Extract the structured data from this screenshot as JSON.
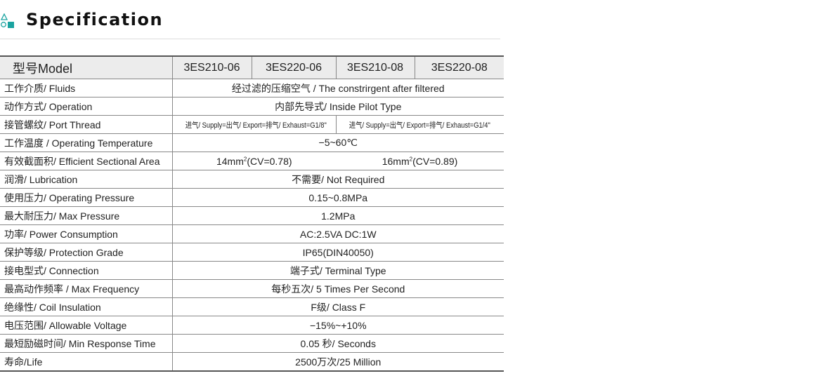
{
  "header": {
    "title": "Specification",
    "icon": "shapes-icon",
    "accent": "#1aa3a0"
  },
  "table": {
    "model_label": "型号Model",
    "models": [
      "3ES210-06",
      "3ES220-06",
      "3ES210-08",
      "3ES220-08"
    ],
    "rows": [
      {
        "label": "工作介质/ Fluids",
        "value": "经过滤的压缩空气 / The constrirgent after filtered"
      },
      {
        "label": "动作方式/ Operation",
        "value": "内部先导式/ Inside Pilot Type"
      },
      {
        "label": "接管螺纹/ Port Thread",
        "values": [
          "进气/ Supply=出气/ Export=排气/ Exhaust=G1/8\"",
          "进气/ Supply=出气/ Export=排气/ Exhaust=G1/4\""
        ]
      },
      {
        "label": "工作温度 / Operating Temperature",
        "value": "−5~60℃"
      },
      {
        "label": "有效截面积/ Efficient Sectional Area",
        "values": [
          "14mm",
          "(CV=0.78)",
          "16mm",
          "(CV=0.89)"
        ],
        "sup": "2"
      },
      {
        "label": "润滑/ Lubrication",
        "value": "不需要/ Not Required"
      },
      {
        "label": "使用压力/ Operating Pressure",
        "value": "0.15~0.8MPa"
      },
      {
        "label": "最大耐压力/ Max Pressure",
        "value": "1.2MPa"
      },
      {
        "label": "功率/ Power Consumption",
        "value": "AC:2.5VA   DC:1W"
      },
      {
        "label": "保护等级/ Protection Grade",
        "value": "IP65(DIN40050)"
      },
      {
        "label": "接电型式/ Connection",
        "value": "端子式/ Terminal Type"
      },
      {
        "label": "最高动作频率 / Max Frequency",
        "value": "每秒五次/ 5 Times Per Second"
      },
      {
        "label": "绝缘性/ Coil Insulation",
        "value": "F级/ Class F"
      },
      {
        "label": "电压范围/ Allowable Voltage",
        "value": "−15%~+10%"
      },
      {
        "label": "最短励磁时间/ Min Response Time",
        "value": "0.05 秒/ Seconds"
      },
      {
        "label": "寿命/Life",
        "value": "2500万次/25 Million"
      }
    ]
  }
}
